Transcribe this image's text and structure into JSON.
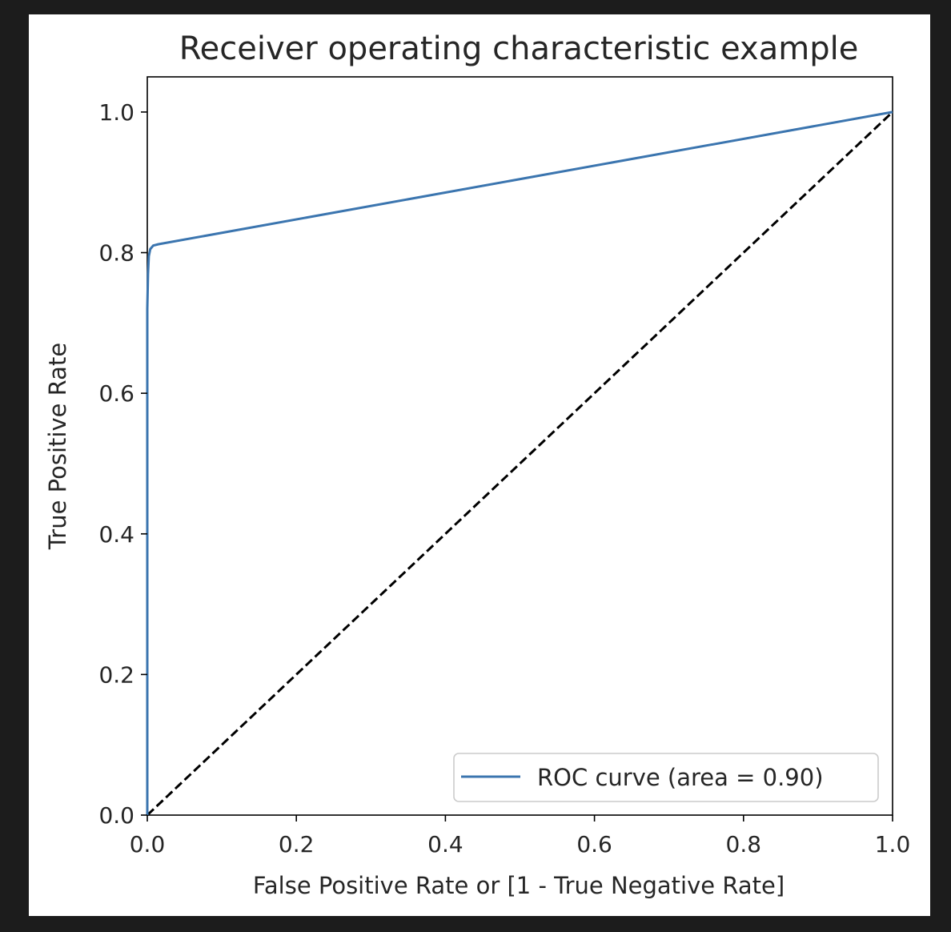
{
  "chart_data": {
    "type": "line",
    "title": "Receiver operating characteristic example",
    "xlabel": "False Positive Rate or [1 - True Negative Rate]",
    "ylabel": "True Positive Rate",
    "xlim": [
      0.0,
      1.0
    ],
    "ylim": [
      0.0,
      1.05
    ],
    "grid": false,
    "legend_position": "lower-right",
    "xticks": [
      "0.0",
      "0.2",
      "0.4",
      "0.6",
      "0.8",
      "1.0"
    ],
    "yticks": [
      "0.0",
      "0.2",
      "0.4",
      "0.6",
      "0.8",
      "1.0"
    ],
    "series": [
      {
        "name": "ROC curve (area = 0.90)",
        "color": "#3b75af",
        "style": "solid",
        "x": [
          0.0,
          0.0,
          0.001,
          0.002,
          0.004,
          0.008,
          0.015,
          1.0
        ],
        "y": [
          0.0,
          0.72,
          0.77,
          0.795,
          0.805,
          0.81,
          0.812,
          1.0
        ]
      },
      {
        "color": "#000000",
        "style": "dashed",
        "x": [
          0.0,
          1.0
        ],
        "y": [
          0.0,
          1.0
        ]
      }
    ]
  }
}
